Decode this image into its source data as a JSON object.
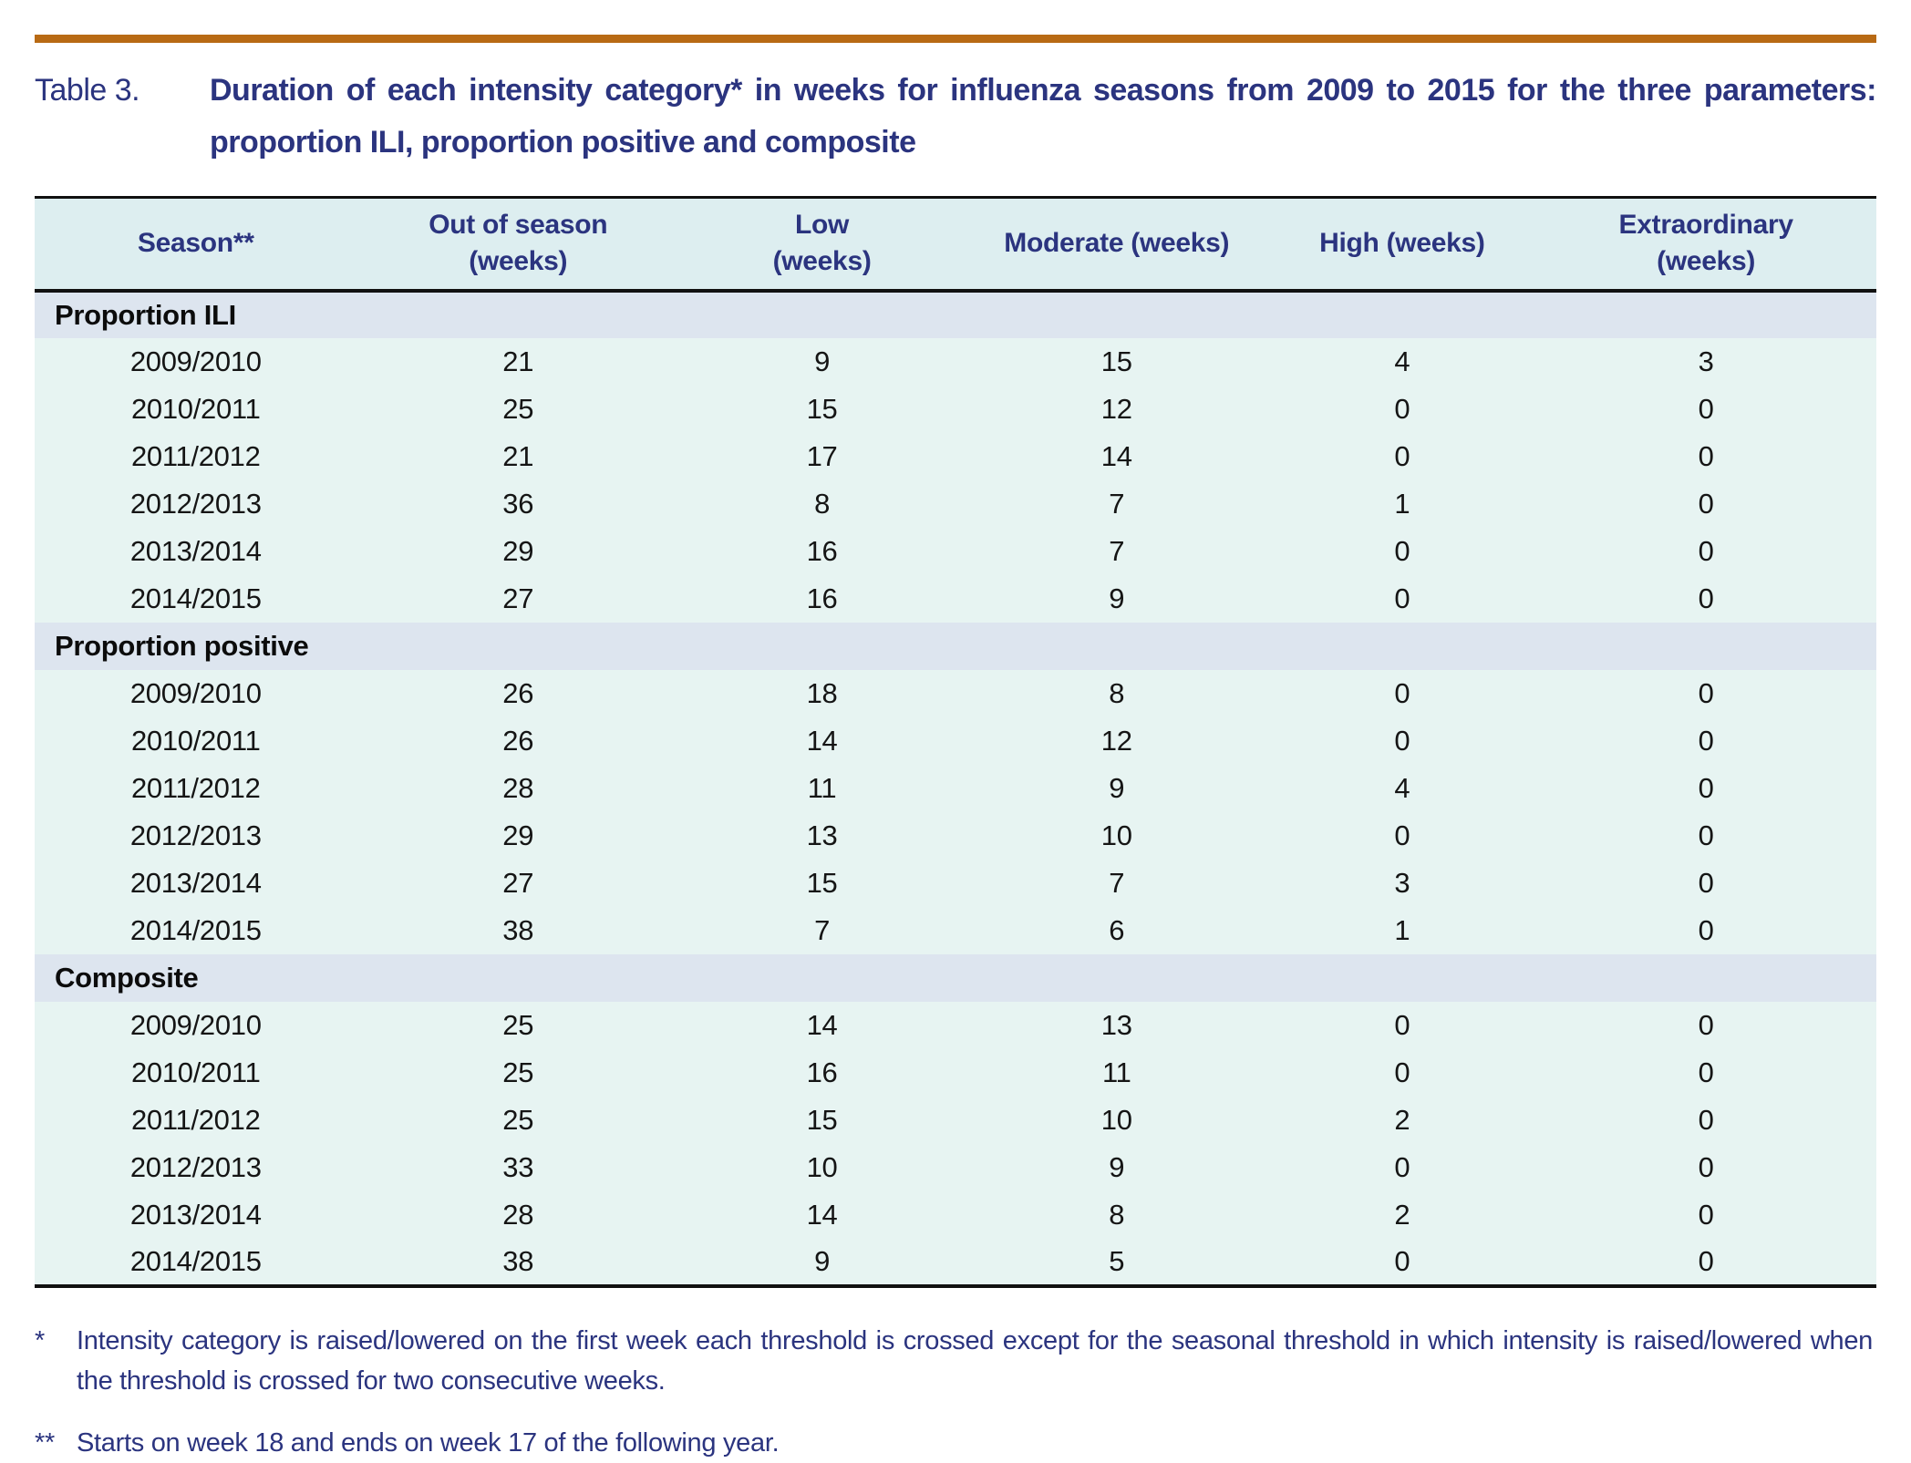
{
  "title": {
    "label": "Table 3.",
    "text": "Duration of each intensity category* in weeks for influenza seasons from 2009 to 2015 for the three parameters: proportion ILI, proportion positive and composite"
  },
  "table": {
    "columns": [
      "Season**",
      "Out of season\n(weeks)",
      "Low\n(weeks)",
      "Moderate (weeks)",
      "High (weeks)",
      "Extraordinary\n(weeks)"
    ],
    "column_widths_pct": [
      17.5,
      17.5,
      15.5,
      16.5,
      14.5,
      18.5
    ],
    "sections": [
      {
        "label": "Proportion ILI",
        "rows": [
          {
            "season": "2009/2010",
            "values": [
              "21",
              "9",
              "15",
              "4",
              "3"
            ]
          },
          {
            "season": "2010/2011",
            "values": [
              "25",
              "15",
              "12",
              "0",
              "0"
            ]
          },
          {
            "season": "2011/2012",
            "values": [
              "21",
              "17",
              "14",
              "0",
              "0"
            ]
          },
          {
            "season": "2012/2013",
            "values": [
              "36",
              "8",
              "7",
              "1",
              "0"
            ]
          },
          {
            "season": "2013/2014",
            "values": [
              "29",
              "16",
              "7",
              "0",
              "0"
            ]
          },
          {
            "season": "2014/2015",
            "values": [
              "27",
              "16",
              "9",
              "0",
              "0"
            ]
          }
        ]
      },
      {
        "label": "Proportion positive",
        "rows": [
          {
            "season": "2009/2010",
            "values": [
              "26",
              "18",
              "8",
              "0",
              "0"
            ]
          },
          {
            "season": "2010/2011",
            "values": [
              "26",
              "14",
              "12",
              "0",
              "0"
            ]
          },
          {
            "season": "2011/2012",
            "values": [
              "28",
              "11",
              "9",
              "4",
              "0"
            ]
          },
          {
            "season": "2012/2013",
            "values": [
              "29",
              "13",
              "10",
              "0",
              "0"
            ]
          },
          {
            "season": "2013/2014",
            "values": [
              "27",
              "15",
              "7",
              "3",
              "0"
            ]
          },
          {
            "season": "2014/2015",
            "values": [
              "38",
              "7",
              "6",
              "1",
              "0"
            ]
          }
        ]
      },
      {
        "label": "Composite",
        "rows": [
          {
            "season": "2009/2010",
            "values": [
              "25",
              "14",
              "13",
              "0",
              "0"
            ]
          },
          {
            "season": "2010/2011",
            "values": [
              "25",
              "16",
              "11",
              "0",
              "0"
            ]
          },
          {
            "season": "2011/2012",
            "values": [
              "25",
              "15",
              "10",
              "2",
              "0"
            ]
          },
          {
            "season": "2012/2013",
            "values": [
              "33",
              "10",
              "9",
              "0",
              "0"
            ]
          },
          {
            "season": "2013/2014",
            "values": [
              "28",
              "14",
              "8",
              "2",
              "0"
            ]
          },
          {
            "season": "2014/2015",
            "values": [
              "38",
              "9",
              "5",
              "0",
              "0"
            ]
          }
        ]
      }
    ]
  },
  "footnotes": [
    {
      "marker": "*",
      "text": "Intensity category is raised/lowered on the first week each threshold is crossed except for the seasonal threshold in which intensity is raised/lowered when the threshold is crossed for two consecutive weeks."
    },
    {
      "marker": "**",
      "text": "Starts on week 18 and ends on week 17 of the following year."
    }
  ],
  "colors": {
    "accent_rule": "#b86a14",
    "heading_text": "#2b347f",
    "header_bg": "#ddeef0",
    "section_bg": "#dde5ef",
    "row_bg": "#e7f4f2",
    "border": "#111111"
  }
}
